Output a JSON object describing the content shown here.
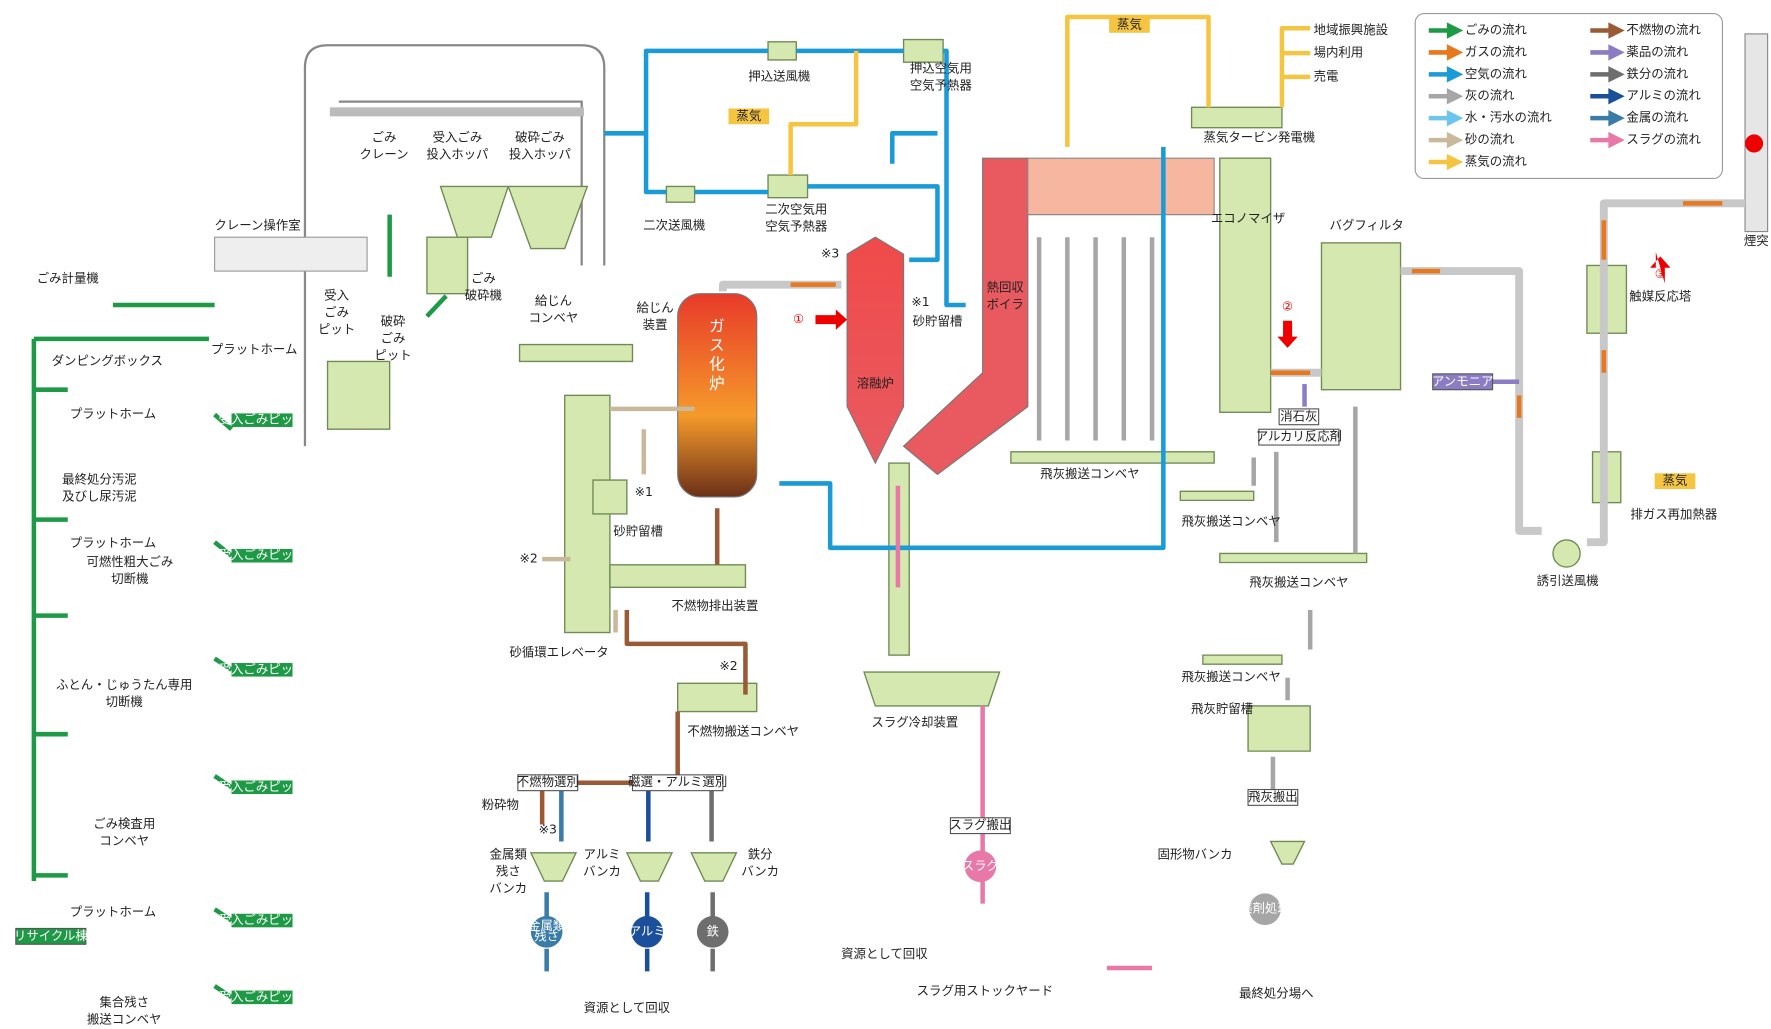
{
  "legend": {
    "items": [
      {
        "label": "ごみの流れ",
        "color": "#1e9a46"
      },
      {
        "label": "ガスの流れ",
        "color": "#e8781e"
      },
      {
        "label": "空気の流れ",
        "color": "#1a9ad6"
      },
      {
        "label": "灰の流れ",
        "color": "#a6a6a6"
      },
      {
        "label": "水・汚水の流れ",
        "color": "#6cc5ec"
      },
      {
        "label": "砂の流れ",
        "color": "#c9b89a"
      },
      {
        "label": "蒸気の流れ",
        "color": "#f5c542"
      },
      {
        "label": "不燃物の流れ",
        "color": "#9a5a36"
      },
      {
        "label": "薬品の流れ",
        "color": "#8c7cc4"
      },
      {
        "label": "鉄分の流れ",
        "color": "#6e6e6e"
      },
      {
        "label": "アルミの流れ",
        "color": "#1b4f9c"
      },
      {
        "label": "金属の流れ",
        "color": "#3a7ca8"
      },
      {
        "label": "スラグの流れ",
        "color": "#e878a8"
      }
    ]
  },
  "labels": [
    {
      "lines": [
        "ごみ計量機"
      ]
    },
    {
      "lines": [
        "ダンピングボックス"
      ]
    },
    {
      "lines": [
        "プラットホーム"
      ]
    },
    {
      "lines": [
        "最終処分汚泥",
        "及びし尿汚泥"
      ]
    },
    {
      "lines": [
        "プラットホーム"
      ]
    },
    {
      "lines": [
        "可燃性粗大ごみ",
        "切断機"
      ]
    },
    {
      "lines": [
        "ふとん・じゅうたん専用",
        "切断機"
      ]
    },
    {
      "lines": [
        "ごみ検査用",
        "コンベヤ"
      ]
    },
    {
      "lines": [
        "プラットホーム"
      ]
    },
    {
      "lines": [
        "集合残さ",
        "搬送コンベヤ"
      ]
    },
    {
      "lines": [
        "クレーン操作室"
      ]
    },
    {
      "lines": [
        "プラットホーム"
      ]
    },
    {
      "lines": [
        "ごみ",
        "クレーン"
      ]
    },
    {
      "lines": [
        "受入ごみ",
        "投入ホッパ"
      ]
    },
    {
      "lines": [
        "破砕ごみ",
        "投入ホッパ"
      ]
    },
    {
      "lines": [
        "受入",
        "ごみ",
        "ピット"
      ]
    },
    {
      "lines": [
        "破砕",
        "ごみ",
        "ピット"
      ]
    },
    {
      "lines": [
        "ごみ",
        "破砕機"
      ]
    },
    {
      "lines": [
        "給じん",
        "コンベヤ"
      ]
    },
    {
      "lines": [
        "給じん",
        "装置"
      ]
    },
    {
      "lines": [
        "ガス化炉"
      ]
    },
    {
      "lines": [
        "砂貯留槽"
      ]
    },
    {
      "lines": [
        "不燃物排出装置"
      ]
    },
    {
      "lines": [
        "砂循環エレベータ"
      ]
    },
    {
      "lines": [
        "不燃物搬送コンベヤ"
      ]
    },
    {
      "lines": [
        "粉砕物"
      ]
    },
    {
      "lines": [
        "金属類",
        "残さ",
        "バンカ"
      ]
    },
    {
      "lines": [
        "アルミ",
        "バンカ"
      ]
    },
    {
      "lines": [
        "鉄分",
        "バンカ"
      ]
    },
    {
      "lines": [
        "資源として回収"
      ]
    },
    {
      "lines": [
        "押込送風機"
      ]
    },
    {
      "lines": [
        "押込空気用",
        "空気予熱器"
      ]
    },
    {
      "lines": [
        "二次送風機"
      ]
    },
    {
      "lines": [
        "二次空気用",
        "空気予熱器"
      ]
    },
    {
      "lines": [
        "溶融炉"
      ]
    },
    {
      "lines": [
        "砂貯留槽"
      ]
    },
    {
      "lines": [
        "熱回収",
        "ボイラ"
      ]
    },
    {
      "lines": [
        "スラグ冷却装置"
      ]
    },
    {
      "lines": [
        "資源として回収"
      ]
    },
    {
      "lines": [
        "スラグ用ストックヤード"
      ]
    },
    {
      "lines": [
        "地域振興施設"
      ]
    },
    {
      "lines": [
        "場内利用"
      ]
    },
    {
      "lines": [
        "売電"
      ]
    },
    {
      "lines": [
        "蒸気タービン発電機"
      ]
    },
    {
      "lines": [
        "エコノマイザ"
      ]
    },
    {
      "lines": [
        "バグフィルタ"
      ]
    },
    {
      "lines": [
        "飛灰搬送コンベヤ"
      ]
    },
    {
      "lines": [
        "飛灰搬送コンベヤ"
      ]
    },
    {
      "lines": [
        "飛灰搬送コンベヤ"
      ]
    },
    {
      "lines": [
        "飛灰搬送コンベヤ"
      ]
    },
    {
      "lines": [
        "飛灰貯留槽"
      ]
    },
    {
      "lines": [
        "固形物バンカ"
      ]
    },
    {
      "lines": [
        "最終処分場へ"
      ]
    },
    {
      "lines": [
        "触媒反応塔"
      ]
    },
    {
      "lines": [
        "排ガス再加熱器"
      ]
    },
    {
      "lines": [
        "誘引送風機"
      ]
    },
    {
      "lines": [
        "煙突"
      ]
    },
    {
      "lines": [
        "※1"
      ]
    },
    {
      "lines": [
        "※2"
      ]
    },
    {
      "lines": [
        "※2"
      ]
    },
    {
      "lines": [
        "※3"
      ]
    },
    {
      "lines": [
        "※1"
      ]
    },
    {
      "lines": [
        "※3"
      ]
    }
  ],
  "pit_labels": [
    "受入ごみピット",
    "受入ごみピット",
    "受入ごみピット",
    "受入ごみピット",
    "受入ごみピット",
    "受入ごみピット"
  ],
  "boxes": [
    "リサイクル棟",
    "不燃物選別",
    "磁選・アルミ選別",
    "スラグ搬出",
    "飛灰搬出",
    "消石灰",
    "アルカリ反応剤",
    "アンモニア"
  ],
  "steam_tags": [
    "蒸気",
    "蒸気",
    "蒸気"
  ],
  "circles": [
    {
      "lines": [
        "金属類",
        "残さ"
      ]
    },
    {
      "lines": [
        "アルミ"
      ]
    },
    {
      "lines": [
        "鉄"
      ]
    },
    {
      "lines": [
        "スラグ"
      ]
    },
    {
      "lines": [
        "薬剤処理"
      ]
    }
  ],
  "markers": [
    "①",
    "②",
    "③"
  ]
}
